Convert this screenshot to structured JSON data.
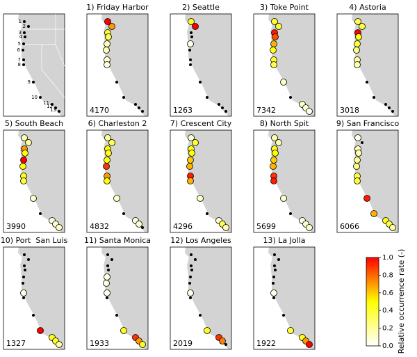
{
  "chart_data": {
    "type": "station-maps",
    "stations": [
      "1",
      "2",
      "3",
      "4",
      "5",
      "6",
      "7",
      "8",
      "9",
      "10",
      "11",
      "12",
      "13"
    ],
    "panels": [
      {
        "title": "1) Friday Harbor",
        "count": 4170,
        "values": [
          1.0,
          0.7,
          0.4,
          0.35,
          0.15,
          0.15,
          0.1,
          0.05,
          null,
          null,
          null,
          null,
          null
        ]
      },
      {
        "title": "2) Seattle",
        "count": 1263,
        "values": [
          0.45,
          1.0,
          null,
          null,
          0.05,
          null,
          null,
          null,
          null,
          null,
          null,
          null,
          null
        ]
      },
      {
        "title": "3) Toke Point",
        "count": 7342,
        "values": [
          0.4,
          0.4,
          0.95,
          0.85,
          0.65,
          0.45,
          0.4,
          0.35,
          0.1,
          null,
          0.1,
          0.1,
          0.05
        ]
      },
      {
        "title": "4) Astoria",
        "count": 3018,
        "values": [
          0.35,
          0.4,
          1.0,
          0.45,
          0.4,
          0.25,
          0.2,
          0.15,
          null,
          null,
          null,
          null,
          null
        ]
      },
      {
        "title": "5) South Beach",
        "count": 3990,
        "values": [
          0.15,
          0.2,
          0.7,
          0.5,
          1.0,
          0.5,
          0.45,
          0.4,
          0.1,
          null,
          0.05,
          0.1,
          0.1
        ]
      },
      {
        "title": "6) Charleston 2",
        "count": 4832,
        "values": [
          0.2,
          0.35,
          0.5,
          0.45,
          0.5,
          0.9,
          0.7,
          0.5,
          0.1,
          null,
          0.05,
          0.1,
          null
        ]
      },
      {
        "title": "7) Crescent City",
        "count": 4296,
        "values": [
          0.1,
          0.4,
          0.45,
          0.5,
          0.6,
          0.65,
          0.95,
          0.65,
          0.1,
          null,
          0.1,
          0.35,
          0.15
        ]
      },
      {
        "title": "8) North Spit",
        "count": 5699,
        "values": [
          0.15,
          0.15,
          0.45,
          0.5,
          0.6,
          0.65,
          0.9,
          0.95,
          0.1,
          null,
          0.05,
          0.1,
          0.1
        ]
      },
      {
        "title": "9) San Francisco",
        "count": 6066,
        "values": [
          0.05,
          null,
          0.15,
          0.15,
          0.2,
          0.25,
          0.35,
          0.4,
          0.95,
          0.65,
          0.45,
          0.35,
          0.2
        ]
      },
      {
        "title": "10) Port  San Luis",
        "count": 1327,
        "values": [
          null,
          null,
          null,
          null,
          null,
          null,
          0.05,
          null,
          null,
          1.0,
          0.45,
          0.4,
          0.2
        ]
      },
      {
        "title": "11) Santa Monica",
        "count": 1933,
        "values": [
          null,
          null,
          null,
          null,
          0.05,
          0.05,
          0.05,
          null,
          null,
          0.45,
          0.9,
          0.7,
          0.45
        ]
      },
      {
        "title": "12) Los Angeles",
        "count": 2019,
        "values": [
          null,
          null,
          null,
          null,
          null,
          null,
          0.05,
          null,
          null,
          0.45,
          0.9,
          0.75,
          null
        ]
      },
      {
        "title": "13) La Jolla",
        "count": 1922,
        "values": [
          null,
          null,
          null,
          null,
          null,
          null,
          0.05,
          null,
          null,
          0.4,
          0.45,
          0.7,
          1.0
        ]
      }
    ],
    "colorbar": {
      "label": "Relative occurrence rate (-)",
      "ylim": [
        0,
        1
      ],
      "yticks": [
        {
          "value": 0,
          "label": "0.0"
        },
        {
          "value": 0.2,
          "label": "0.2"
        },
        {
          "value": 0.4,
          "label": "0.4"
        },
        {
          "value": 0.6,
          "label": "0.6"
        },
        {
          "value": 0.8,
          "label": "0.8"
        },
        {
          "value": 1,
          "label": "1.0"
        }
      ],
      "colors": [
        "#ffffff",
        "#ffff00",
        "#ff0000"
      ]
    }
  }
}
